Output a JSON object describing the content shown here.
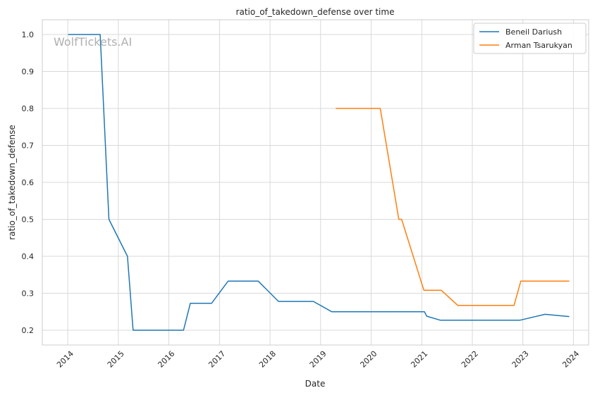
{
  "watermark": "WolfTickets.AI",
  "chart_data": {
    "type": "line",
    "title": "ratio_of_takedown_defense over time",
    "xlabel": "Date",
    "ylabel": "ratio_of_takedown_defense",
    "xlim": [
      "2013-07-01",
      "2024-04-20"
    ],
    "ylim": [
      0.16,
      1.04
    ],
    "x_ticks": [
      "2014",
      "2015",
      "2016",
      "2017",
      "2018",
      "2019",
      "2020",
      "2021",
      "2022",
      "2023",
      "2024"
    ],
    "y_ticks": [
      "0.2",
      "0.3",
      "0.4",
      "0.5",
      "0.6",
      "0.7",
      "0.8",
      "0.9",
      "1.0"
    ],
    "grid": true,
    "legend_position": "top-right",
    "series": [
      {
        "name": "Beneil Dariush",
        "color": "#1f77b4",
        "points": [
          [
            "2014-01-04",
            1.0
          ],
          [
            "2014-08-23",
            1.0
          ],
          [
            "2014-10-25",
            0.5
          ],
          [
            "2015-03-08",
            0.4
          ],
          [
            "2015-04-18",
            0.2
          ],
          [
            "2016-04-16",
            0.2
          ],
          [
            "2016-06-04",
            0.273
          ],
          [
            "2016-11-05",
            0.273
          ],
          [
            "2017-03-04",
            0.333
          ],
          [
            "2017-10-07",
            0.333
          ],
          [
            "2018-03-03",
            0.278
          ],
          [
            "2018-11-10",
            0.278
          ],
          [
            "2019-03-23",
            0.25
          ],
          [
            "2021-01-20",
            0.25
          ],
          [
            "2021-02-06",
            0.238
          ],
          [
            "2021-05-15",
            0.227
          ],
          [
            "2022-12-10",
            0.227
          ],
          [
            "2023-06-10",
            0.243
          ],
          [
            "2023-12-02",
            0.237
          ]
        ]
      },
      {
        "name": "Arman Tsarukyan",
        "color": "#ff7f0e",
        "points": [
          [
            "2019-04-20",
            0.8
          ],
          [
            "2020-03-07",
            0.8
          ],
          [
            "2020-07-19",
            0.5
          ],
          [
            "2020-08-08",
            0.5
          ],
          [
            "2021-01-16",
            0.308
          ],
          [
            "2021-05-22",
            0.308
          ],
          [
            "2021-09-18",
            0.267
          ],
          [
            "2022-10-29",
            0.267
          ],
          [
            "2022-12-17",
            0.333
          ],
          [
            "2023-12-02",
            0.333
          ]
        ]
      }
    ]
  }
}
